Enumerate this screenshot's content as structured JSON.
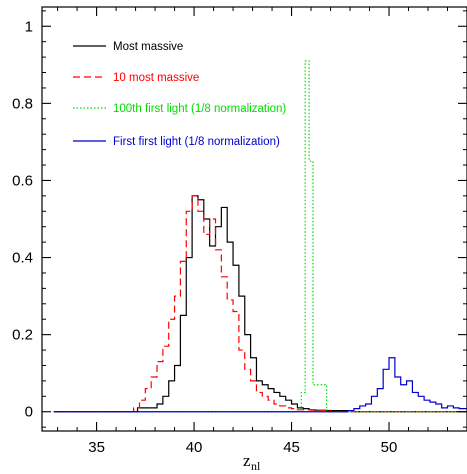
{
  "chart_data": {
    "type": "line",
    "xlabel": "z",
    "xlabel_subscript": "nl",
    "ylabel": "",
    "xlim": [
      32.2,
      54
    ],
    "ylim": [
      -0.05,
      1.05
    ],
    "xticks": [
      35,
      40,
      45,
      50
    ],
    "yticks": [
      0,
      0.2,
      0.4,
      0.6,
      0.8,
      1
    ],
    "ytick_labels": [
      "0",
      "0.2",
      "0.4",
      "0.6",
      "0.8",
      "1"
    ],
    "legend_position": "top-left",
    "series": [
      {
        "name": "Most massive",
        "color": "#000000",
        "dash": "solid",
        "x": [
          32.8,
          37.1,
          38.1,
          38.4,
          38.7,
          39.0,
          39.3,
          39.6,
          39.9,
          40.2,
          40.5,
          40.8,
          41.1,
          41.4,
          41.7,
          42.0,
          42.3,
          42.6,
          42.9,
          43.2,
          43.5,
          43.8,
          44.1,
          44.4,
          44.7,
          45.0,
          45.3,
          45.6,
          45.9,
          46.2,
          46.8,
          48.2,
          54.0
        ],
        "y": [
          0.0,
          0.01,
          0.02,
          0.04,
          0.08,
          0.12,
          0.25,
          0.4,
          0.56,
          0.55,
          0.5,
          0.43,
          0.48,
          0.53,
          0.44,
          0.38,
          0.3,
          0.2,
          0.14,
          0.08,
          0.07,
          0.06,
          0.05,
          0.04,
          0.03,
          0.02,
          0.01,
          0.008,
          0.005,
          0.004,
          0.003,
          0.0,
          0.0
        ]
      },
      {
        "name": "10 most massive",
        "color": "#ff0000",
        "dash": "dashed",
        "x": [
          32.8,
          36.9,
          37.2,
          37.5,
          37.8,
          38.1,
          38.4,
          38.7,
          39.0,
          39.3,
          39.6,
          39.9,
          40.2,
          40.5,
          40.8,
          41.1,
          41.4,
          41.7,
          42.0,
          42.3,
          42.6,
          42.9,
          43.2,
          43.5,
          43.8,
          44.1,
          44.4,
          44.7,
          45.0,
          45.3,
          46.0,
          47.0,
          54.0
        ],
        "y": [
          0.0,
          0.01,
          0.03,
          0.06,
          0.09,
          0.13,
          0.17,
          0.24,
          0.3,
          0.39,
          0.52,
          0.56,
          0.52,
          0.46,
          0.5,
          0.42,
          0.35,
          0.29,
          0.26,
          0.16,
          0.11,
          0.08,
          0.05,
          0.04,
          0.03,
          0.02,
          0.015,
          0.01,
          0.008,
          0.005,
          0.004,
          0.0,
          0.0
        ]
      },
      {
        "name": "100th first light (1/8 normalization)",
        "color": "#00dd00",
        "dash": "dotted",
        "x": [
          32.8,
          44.8,
          45.3,
          45.5,
          45.7,
          45.9,
          46.1,
          46.8,
          54.0
        ],
        "y": [
          0.0,
          0.0,
          0.005,
          0.05,
          0.91,
          0.65,
          0.07,
          0.0,
          0.0
        ],
        "hist_edges": [
          45.3,
          45.5,
          45.7,
          45.9,
          46.1,
          46.3
        ]
      },
      {
        "name": "First first light (1/8 normalization)",
        "color": "#0000cc",
        "dash": "solid",
        "x": [
          32.8,
          47.6,
          47.9,
          48.2,
          48.5,
          48.8,
          49.1,
          49.4,
          49.7,
          50.0,
          50.3,
          50.6,
          50.9,
          51.2,
          51.5,
          51.8,
          52.1,
          52.4,
          52.7,
          53.0,
          53.3,
          53.6,
          54.0
        ],
        "y": [
          0.0,
          0.0,
          0.003,
          0.008,
          0.015,
          0.02,
          0.04,
          0.06,
          0.11,
          0.14,
          0.09,
          0.07,
          0.08,
          0.05,
          0.04,
          0.03,
          0.025,
          0.02,
          0.01,
          0.015,
          0.01,
          0.008,
          0.005
        ]
      }
    ]
  }
}
